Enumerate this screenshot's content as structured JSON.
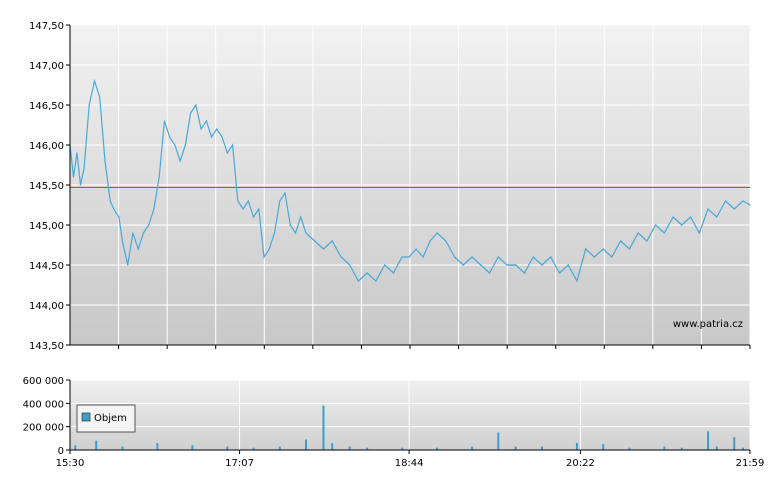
{
  "watermark": "www.patria.cz",
  "colors": {
    "price_line": "#4aa8d8",
    "reference_line": "#d03030",
    "volume_bar": "#3a9fcf",
    "grid": "#ffffff",
    "axis": "#000000"
  },
  "chart_data": [
    {
      "type": "line",
      "panel": "price",
      "xlim": [
        "15:30",
        "21:59"
      ],
      "ylim": [
        143.5,
        147.5
      ],
      "y_ticks": [
        "143,50",
        "144,00",
        "144,50",
        "145,00",
        "145,50",
        "146,00",
        "146,50",
        "147,00",
        "147,50"
      ],
      "y_tick_values": [
        143.5,
        144.0,
        144.5,
        145.0,
        145.5,
        146.0,
        146.5,
        147.0,
        147.5
      ],
      "grid": true,
      "reference_line": 145.47,
      "series": [
        {
          "x": [
            "15:30",
            "15:32",
            "15:34",
            "15:36",
            "15:38",
            "15:41",
            "15:44",
            "15:47",
            "15:50",
            "15:53",
            "15:55",
            "15:58",
            "16:00",
            "16:03",
            "16:06",
            "16:09",
            "16:12",
            "16:15",
            "16:18",
            "16:21",
            "16:24",
            "16:27",
            "16:30",
            "16:33",
            "16:36",
            "16:39",
            "16:42",
            "16:45",
            "16:48",
            "16:51",
            "16:54",
            "16:57",
            "17:00",
            "17:03",
            "17:06",
            "17:09",
            "17:12",
            "17:15",
            "17:18",
            "17:21",
            "17:24",
            "17:27",
            "17:30",
            "17:33",
            "17:36",
            "17:39",
            "17:42",
            "17:45",
            "17:50",
            "17:55",
            "18:00",
            "18:05",
            "18:10",
            "18:15",
            "18:20",
            "18:25",
            "18:30",
            "18:35",
            "18:40",
            "18:44",
            "18:48",
            "18:52",
            "18:56",
            "19:00",
            "19:05",
            "19:10",
            "19:15",
            "19:20",
            "19:25",
            "19:30",
            "19:35",
            "19:40",
            "19:45",
            "19:50",
            "19:55",
            "20:00",
            "20:05",
            "20:10",
            "20:15",
            "20:20",
            "20:25",
            "20:30",
            "20:35",
            "20:40",
            "20:45",
            "20:50",
            "20:55",
            "21:00",
            "21:05",
            "21:10",
            "21:15",
            "21:20",
            "21:25",
            "21:30",
            "21:35",
            "21:40",
            "21:45",
            "21:50",
            "21:55",
            "21:59"
          ],
          "y": [
            146.0,
            145.6,
            145.9,
            145.5,
            145.7,
            146.5,
            146.8,
            146.6,
            145.8,
            145.3,
            145.2,
            145.1,
            144.8,
            144.5,
            144.9,
            144.7,
            144.9,
            145.0,
            145.2,
            145.6,
            146.3,
            146.1,
            146.0,
            145.8,
            146.0,
            146.4,
            146.5,
            146.2,
            146.3,
            146.1,
            146.2,
            146.1,
            145.9,
            146.0,
            145.3,
            145.2,
            145.3,
            145.1,
            145.2,
            144.6,
            144.7,
            144.9,
            145.3,
            145.4,
            145.0,
            144.9,
            145.1,
            144.9,
            144.8,
            144.7,
            144.8,
            144.6,
            144.5,
            144.3,
            144.4,
            144.3,
            144.5,
            144.4,
            144.6,
            144.6,
            144.7,
            144.6,
            144.8,
            144.9,
            144.8,
            144.6,
            144.5,
            144.6,
            144.5,
            144.4,
            144.6,
            144.5,
            144.5,
            144.4,
            144.6,
            144.5,
            144.6,
            144.4,
            144.5,
            144.3,
            144.7,
            144.6,
            144.7,
            144.6,
            144.8,
            144.7,
            144.9,
            144.8,
            145.0,
            144.9,
            145.1,
            145.0,
            145.1,
            144.9,
            145.2,
            145.1,
            145.3,
            145.2,
            145.3,
            145.25
          ]
        }
      ]
    },
    {
      "type": "bar",
      "panel": "volume",
      "xlim": [
        "15:30",
        "21:59"
      ],
      "ylim": [
        0,
        600000
      ],
      "y_ticks": [
        "0",
        "200 000",
        "400 000",
        "600 000"
      ],
      "y_tick_values": [
        0,
        200000,
        400000,
        600000
      ],
      "x_ticks": [
        "15:30",
        "17:07",
        "18:44",
        "20:22",
        "21:59"
      ],
      "grid": true,
      "legend": {
        "placement": "left",
        "entries": [
          "Objem"
        ]
      },
      "series": [
        {
          "name": "Objem",
          "x": [
            "15:33",
            "15:45",
            "16:00",
            "16:20",
            "16:40",
            "17:00",
            "17:15",
            "17:30",
            "17:45",
            "17:55",
            "18:00",
            "18:10",
            "18:20",
            "18:40",
            "19:00",
            "19:20",
            "19:35",
            "19:45",
            "20:00",
            "20:20",
            "20:35",
            "20:50",
            "21:10",
            "21:20",
            "21:35",
            "21:40",
            "21:50",
            "21:55"
          ],
          "values": [
            40000,
            80000,
            30000,
            60000,
            40000,
            30000,
            20000,
            30000,
            90000,
            380000,
            60000,
            30000,
            20000,
            20000,
            20000,
            30000,
            150000,
            30000,
            30000,
            60000,
            50000,
            20000,
            30000,
            20000,
            160000,
            30000,
            110000,
            20000
          ]
        }
      ]
    }
  ]
}
